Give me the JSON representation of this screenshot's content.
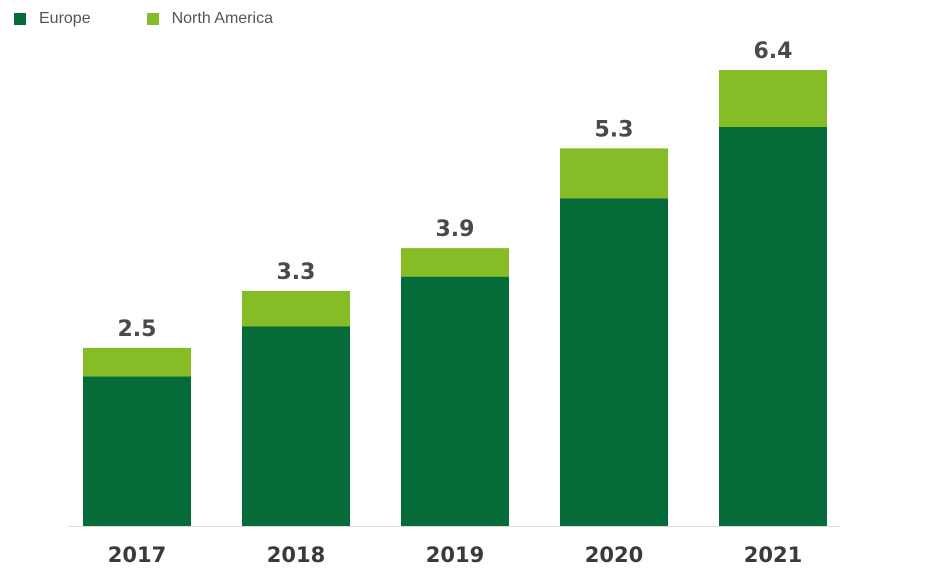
{
  "colors": {
    "europe": "#056b38",
    "north_america": "#86bc25",
    "axis_line": "#dddddd"
  },
  "legend": {
    "items": [
      {
        "label": "Europe",
        "color": "#056b38"
      },
      {
        "label": "North America",
        "color": "#86bc25"
      }
    ],
    "placement": "top-left"
  },
  "chart_data": {
    "type": "bar",
    "stacked": true,
    "categories": [
      "2017",
      "2018",
      "2019",
      "2020",
      "2021"
    ],
    "series": [
      {
        "name": "Europe",
        "values": [
          2.1,
          2.8,
          3.5,
          4.6,
          5.6
        ]
      },
      {
        "name": "North America",
        "values": [
          0.4,
          0.5,
          0.4,
          0.7,
          0.8
        ]
      }
    ],
    "totals": [
      "2.5",
      "3.3",
      "3.9",
      "5.3",
      "6.4"
    ],
    "title": "",
    "xlabel": "",
    "ylabel": "",
    "ylim": [
      0,
      6.4
    ],
    "grid": false
  }
}
